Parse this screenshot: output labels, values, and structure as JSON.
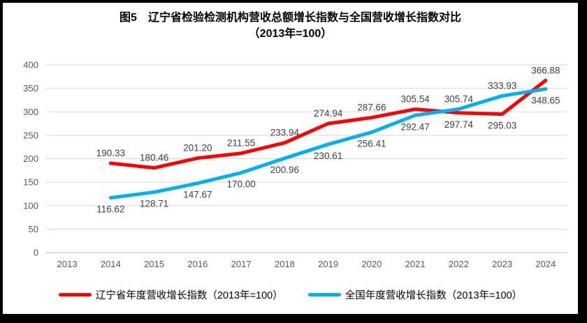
{
  "title": {
    "line1": "图5　辽宁省检验检测机构营收总额增长指数与全国营收增长指数对比",
    "line2": "（2013年=100）"
  },
  "chart_data": {
    "type": "line",
    "categories": [
      "2013",
      "2014",
      "2015",
      "2016",
      "2017",
      "2018",
      "2019",
      "2020",
      "2021",
      "2022",
      "2023",
      "2024"
    ],
    "series": [
      {
        "name": "辽宁省年度营收增长指数（2013年=100）",
        "color": "#FF0000",
        "values": [
          null,
          190.33,
          180.46,
          201.2,
          211.55,
          233.94,
          274.94,
          287.66,
          305.54,
          297.74,
          295.03,
          366.88
        ],
        "label_positions": [
          null,
          "above",
          "above",
          "above",
          "above",
          "above",
          "above",
          "above",
          "above",
          "below",
          "below",
          "above"
        ]
      },
      {
        "name": "全国年度营收增长指数（2013年=100）",
        "color": "#00B0F0",
        "values": [
          null,
          116.62,
          128.71,
          147.67,
          170.0,
          200.96,
          230.61,
          256.41,
          292.47,
          305.74,
          333.93,
          348.65
        ],
        "label_positions": [
          null,
          "below",
          "below",
          "below",
          "below",
          "below",
          "below",
          "below",
          "below",
          "above",
          "above",
          "below"
        ]
      }
    ],
    "ylim": [
      0,
      400
    ],
    "yticks": [
      0,
      50,
      100,
      150,
      200,
      250,
      300,
      350,
      400
    ],
    "grid": "horizontal",
    "legend_position": "bottom",
    "decimals": 2,
    "gridline_color": "#D9D9D9",
    "axis_line_color": "#BFBFBF",
    "axis_label_color": "#595959",
    "data_label_color": "#404040"
  }
}
